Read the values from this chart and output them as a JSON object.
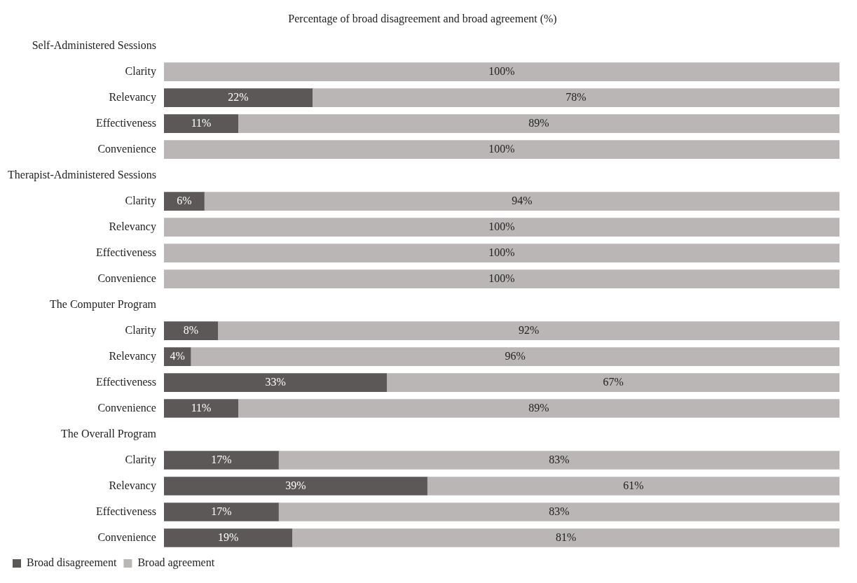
{
  "chart_data": {
    "type": "bar",
    "orientation": "horizontal",
    "stacked": true,
    "title": "Percentage of broad disagreement and broad agreement (%)",
    "categories": [
      "Self-Administered Sessions",
      "Clarity",
      "Relevancy",
      "Effectiveness",
      "Convenience",
      "Therapist-Administered Sessions",
      "Clarity",
      "Relevancy",
      "Effectiveness",
      "Convenience",
      "The Computer Program",
      "Clarity",
      "Relevancy",
      "Effectiveness",
      "Convenience",
      "The Overall Program",
      "Clarity",
      "Relevancy",
      "Effectiveness",
      "Convenience"
    ],
    "series": [
      {
        "name": "Broad disagreement",
        "color": "#5d5858",
        "values": [
          null,
          null,
          22,
          11,
          null,
          null,
          6,
          null,
          null,
          null,
          null,
          8,
          4,
          33,
          11,
          null,
          17,
          39,
          17,
          19
        ],
        "value_labels": [
          null,
          null,
          "22%",
          "11%",
          null,
          null,
          "6%",
          null,
          null,
          null,
          null,
          "8%",
          "4%",
          "33%",
          "11%",
          null,
          "17%",
          "39%",
          "17%",
          "19%"
        ]
      },
      {
        "name": "Broad agreement",
        "color": "#bbb6b6",
        "values": [
          null,
          100,
          78,
          89,
          100,
          null,
          94,
          100,
          100,
          100,
          null,
          92,
          96,
          67,
          89,
          null,
          83,
          61,
          83,
          81
        ],
        "value_labels": [
          null,
          "100%",
          "78%",
          "89%",
          "100%",
          null,
          "94%",
          "100%",
          "100%",
          "100%",
          null,
          "92%",
          "96%",
          "67%",
          "89%",
          null,
          "83%",
          "61%",
          "83%",
          "81%"
        ]
      }
    ],
    "legend": "bottom left"
  }
}
